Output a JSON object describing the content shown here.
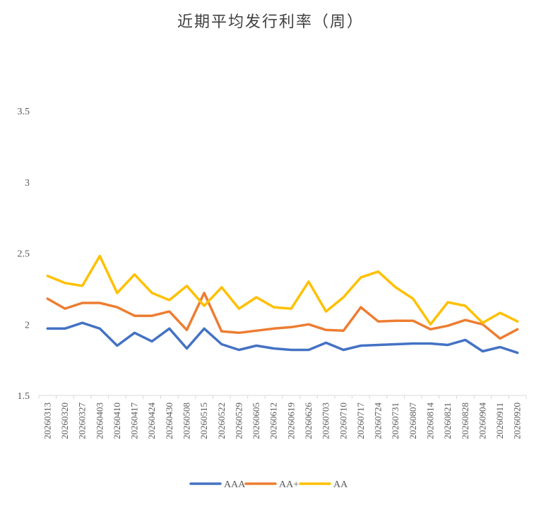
{
  "chart_data": {
    "type": "line",
    "title": "近期平均发行利率（周）",
    "xlabel": "",
    "ylabel": "",
    "ylim": [
      1.5,
      3.5
    ],
    "yticks": [
      "1.5",
      "2",
      "2.5",
      "3",
      "3.5"
    ],
    "ytick_values": [
      1.5,
      2,
      2.5,
      3,
      3.5
    ],
    "grid": false,
    "legend_position": "bottom",
    "categories": [
      "20260313",
      "20260320",
      "20260327",
      "20260403",
      "20260410",
      "20260417",
      "20260424",
      "20260430",
      "20260508",
      "20260515",
      "20260522",
      "20260529",
      "20260605",
      "20260612",
      "20260619",
      "20260626",
      "20260703",
      "20260710",
      "20260717",
      "20260724",
      "20260731",
      "20260807",
      "20260814",
      "20260821",
      "20260828",
      "20260904",
      "20260911",
      "20260920"
    ],
    "series": [
      {
        "name": "AAA",
        "color": "#4472C4",
        "values": [
          1.97,
          1.97,
          2.01,
          1.97,
          1.85,
          1.94,
          1.88,
          1.97,
          1.83,
          1.97,
          1.86,
          1.82,
          1.85,
          1.83,
          1.82,
          1.82,
          1.87,
          1.82,
          1.85,
          1.855,
          1.86,
          1.865,
          1.865,
          1.855,
          1.89,
          1.81,
          1.84,
          1.8
        ]
      },
      {
        "name": "AA+",
        "color": "#ED7D31",
        "values": [
          2.18,
          2.11,
          2.15,
          2.15,
          2.12,
          2.06,
          2.06,
          2.09,
          1.96,
          2.22,
          1.95,
          1.94,
          1.955,
          1.97,
          1.98,
          2.0,
          1.96,
          1.955,
          2.12,
          2.02,
          2.025,
          2.025,
          1.965,
          1.99,
          2.03,
          2.0,
          1.9,
          1.965
        ]
      },
      {
        "name": "AA",
        "color": "#FFC000",
        "values": [
          2.34,
          2.29,
          2.27,
          2.48,
          2.22,
          2.35,
          2.22,
          2.17,
          2.27,
          2.13,
          2.26,
          2.11,
          2.19,
          2.12,
          2.11,
          2.3,
          2.09,
          2.19,
          2.33,
          2.37,
          2.26,
          2.18,
          2.0,
          2.155,
          2.13,
          2.01,
          2.08,
          2.02
        ]
      }
    ]
  }
}
